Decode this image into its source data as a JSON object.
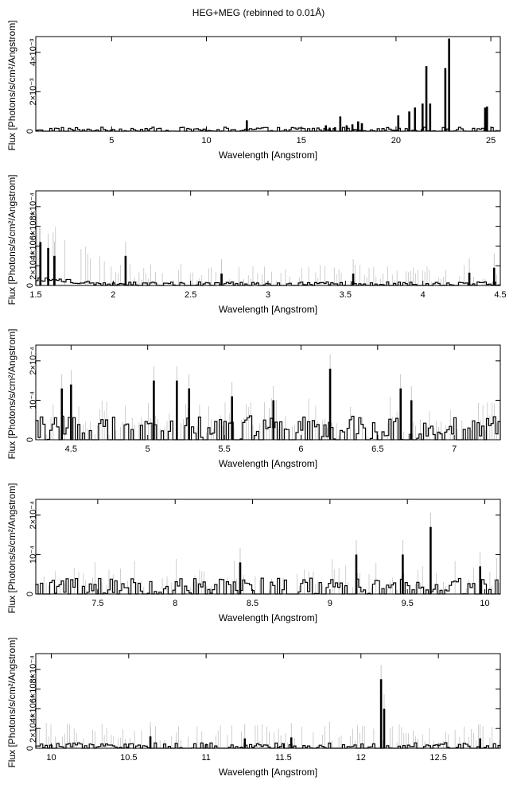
{
  "title": "HEG+MEG (rebinned to 0.01Å)",
  "chart_data": [
    {
      "type": "line",
      "xlabel": "Wavelength [Angstrom]",
      "ylabel": "Flux [Photons/s/cm²/Angstrom]",
      "xlim": [
        1.0,
        25.5
      ],
      "ylim": [
        0,
        0.0048
      ],
      "xticks": [
        5,
        10,
        15,
        20,
        25
      ],
      "xtick_labels": [
        "5",
        "10",
        "15",
        "20",
        "25"
      ],
      "yticks": [
        0,
        0.002,
        0.004
      ],
      "ytick_labels": [
        "0",
        "2×10⁻³",
        "4×10⁻³"
      ],
      "lines": [
        {
          "x": 12.13,
          "y": 0.00055
        },
        {
          "x": 16.3,
          "y": 0.0003
        },
        {
          "x": 16.5,
          "y": 0.00018
        },
        {
          "x": 16.78,
          "y": 0.0002
        },
        {
          "x": 17.06,
          "y": 0.00075
        },
        {
          "x": 17.4,
          "y": 0.0003
        },
        {
          "x": 17.7,
          "y": 0.00035
        },
        {
          "x": 18.0,
          "y": 0.0005
        },
        {
          "x": 18.2,
          "y": 0.0004
        },
        {
          "x": 20.12,
          "y": 0.0008
        },
        {
          "x": 20.7,
          "y": 0.001
        },
        {
          "x": 21.0,
          "y": 0.0012
        },
        {
          "x": 21.4,
          "y": 0.0014
        },
        {
          "x": 21.6,
          "y": 0.0033
        },
        {
          "x": 21.8,
          "y": 0.0014
        },
        {
          "x": 22.6,
          "y": 0.0032
        },
        {
          "x": 22.8,
          "y": 0.0047
        },
        {
          "x": 24.7,
          "y": 0.0012
        },
        {
          "x": 24.8,
          "y": 0.00125
        }
      ]
    },
    {
      "type": "line",
      "xlabel": "Wavelength [Angstrom]",
      "ylabel": "Flux [Photons/s/cm²/Angstrom]",
      "xlim": [
        1.5,
        4.5
      ],
      "ylim": [
        0,
        0.00096
      ],
      "xticks": [
        1.5,
        2,
        2.5,
        3,
        3.5,
        4,
        4.5
      ],
      "xtick_labels": [
        "1.5",
        "2",
        "2.5",
        "3",
        "3.5",
        "4",
        "4.5"
      ],
      "yticks": [
        0,
        0.0002,
        0.0004,
        0.0006,
        0.0008
      ],
      "ytick_labels": [
        "0",
        "2×10⁻⁴",
        "4×10⁻⁴",
        "6×10⁻⁴",
        "8×10⁻⁴"
      ],
      "lines": [
        {
          "x": 1.53,
          "y": 0.00044
        },
        {
          "x": 1.58,
          "y": 0.00038
        },
        {
          "x": 1.62,
          "y": 0.0003
        },
        {
          "x": 2.08,
          "y": 0.0003
        },
        {
          "x": 2.7,
          "y": 0.00012
        },
        {
          "x": 3.55,
          "y": 0.00012
        },
        {
          "x": 4.3,
          "y": 0.00013
        },
        {
          "x": 4.46,
          "y": 0.00018
        }
      ]
    },
    {
      "type": "line",
      "xlabel": "Wavelength [Angstrom]",
      "ylabel": "Flux [Photons/s/cm²/Angstrom]",
      "xlim": [
        4.27,
        7.3
      ],
      "ylim": [
        0,
        0.00024
      ],
      "xticks": [
        4.5,
        5,
        5.5,
        6,
        6.5,
        7
      ],
      "xtick_labels": [
        "4.5",
        "5",
        "5.5",
        "6",
        "6.5",
        "7"
      ],
      "yticks": [
        0,
        0.0001,
        0.0002
      ],
      "ytick_labels": [
        "0",
        "10⁻⁴",
        "2×10⁻⁴"
      ],
      "lines": [
        {
          "x": 4.44,
          "y": 0.00013
        },
        {
          "x": 4.5,
          "y": 0.00014
        },
        {
          "x": 5.04,
          "y": 0.00015
        },
        {
          "x": 5.19,
          "y": 0.00015
        },
        {
          "x": 5.27,
          "y": 0.00013
        },
        {
          "x": 5.55,
          "y": 0.00011
        },
        {
          "x": 5.82,
          "y": 0.0001
        },
        {
          "x": 6.19,
          "y": 0.00018
        },
        {
          "x": 6.65,
          "y": 0.00013
        },
        {
          "x": 6.72,
          "y": 0.0001
        }
      ]
    },
    {
      "type": "line",
      "xlabel": "Wavelength [Angstrom]",
      "ylabel": "Flux [Photons/s/cm²/Angstrom]",
      "xlim": [
        7.1,
        10.1
      ],
      "ylim": [
        0,
        0.00024
      ],
      "xticks": [
        7.5,
        8,
        8.5,
        9,
        9.5,
        10
      ],
      "xtick_labels": [
        "7.5",
        "8",
        "8.5",
        "9",
        "9.5",
        "10"
      ],
      "yticks": [
        0,
        0.0001,
        0.0002
      ],
      "ytick_labels": [
        "0",
        "10⁻⁴",
        "2×10⁻⁴"
      ],
      "lines": [
        {
          "x": 8.42,
          "y": 8e-05
        },
        {
          "x": 9.17,
          "y": 0.0001
        },
        {
          "x": 9.47,
          "y": 0.0001
        },
        {
          "x": 9.65,
          "y": 0.00017
        },
        {
          "x": 9.97,
          "y": 7e-05
        }
      ]
    },
    {
      "type": "line",
      "xlabel": "Wavelength [Angstrom]",
      "ylabel": "Flux [Photons/s/cm²/Angstrom]",
      "xlim": [
        9.9,
        12.9
      ],
      "ylim": [
        0,
        0.00096
      ],
      "xticks": [
        10,
        10.5,
        11,
        11.5,
        12,
        12.5
      ],
      "xtick_labels": [
        "10",
        "10.5",
        "11",
        "11.5",
        "12",
        "12.5"
      ],
      "yticks": [
        0,
        0.0002,
        0.0004,
        0.0006,
        0.0008
      ],
      "ytick_labels": [
        "0",
        "2×10⁻⁴",
        "4×10⁻⁴",
        "6×10⁻⁴",
        "8×10⁻⁴"
      ],
      "lines": [
        {
          "x": 10.64,
          "y": 0.00012
        },
        {
          "x": 11.25,
          "y": 0.0001
        },
        {
          "x": 11.55,
          "y": 0.00011
        },
        {
          "x": 12.13,
          "y": 0.0007
        },
        {
          "x": 12.15,
          "y": 0.0004
        },
        {
          "x": 12.77,
          "y": 0.0001
        }
      ]
    }
  ]
}
